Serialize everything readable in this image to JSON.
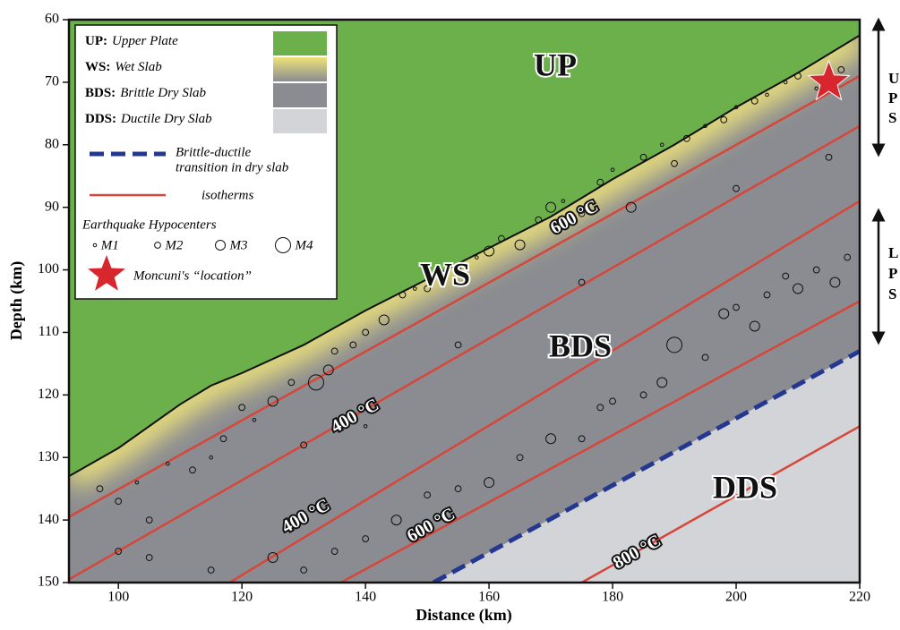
{
  "chart_data": {
    "type": "cross-section",
    "x_label": "Distance (km)",
    "y_label": "Depth (km)",
    "xlim": [
      92,
      220
    ],
    "ylim": [
      60,
      150
    ],
    "xticks": [
      100,
      120,
      140,
      160,
      180,
      200,
      220
    ],
    "yticks": [
      60,
      70,
      80,
      90,
      100,
      110,
      120,
      130,
      140,
      150
    ],
    "y_inverted": true,
    "colors": {
      "UP": "#6bb04a",
      "WS": "#ede27a",
      "BDS": "#8b8c91",
      "DDS": "#d3d4d7",
      "isotherm": "#d7463a",
      "transition": "#24388f",
      "star": "#d7262e"
    },
    "slab_top": {
      "x": [
        92,
        100,
        110,
        115,
        120,
        130,
        140,
        150,
        160,
        170,
        180,
        190,
        200,
        210,
        220
      ],
      "y": [
        133,
        128.5,
        121.5,
        118.5,
        116.5,
        112,
        106.5,
        101.5,
        96.5,
        91.5,
        85.5,
        80,
        74,
        68.5,
        62.5
      ]
    },
    "isotherms": [
      {
        "x": [
          92,
          220
        ],
        "y": [
          139.5,
          69
        ]
      },
      {
        "x": [
          92,
          220
        ],
        "y": [
          149.5,
          77
        ]
      },
      {
        "x": [
          118,
          220
        ],
        "y": [
          150,
          89
        ]
      },
      {
        "x": [
          136,
          220
        ],
        "y": [
          150,
          105
        ]
      },
      {
        "x": [
          175,
          220
        ],
        "y": [
          150,
          125
        ]
      }
    ],
    "transition": {
      "x": [
        151,
        220
      ],
      "y": [
        150,
        113
      ]
    },
    "star": {
      "x": 215,
      "y": 70
    },
    "hypocenters": {
      "x": [
        97,
        100,
        103,
        105,
        108,
        112,
        115,
        117,
        120,
        122,
        125,
        128,
        132,
        134,
        135,
        138,
        140,
        143,
        146,
        148,
        150,
        152,
        155,
        158,
        160,
        162,
        165,
        168,
        170,
        172,
        175,
        178,
        180,
        183,
        185,
        188,
        190,
        192,
        195,
        198,
        200,
        203,
        205,
        208,
        210,
        213,
        217,
        130,
        140,
        155,
        175,
        200,
        215,
        100,
        105,
        115,
        125,
        130,
        135,
        140,
        145,
        150,
        155,
        160,
        165,
        170,
        175,
        178,
        180,
        185,
        188,
        190,
        195,
        198,
        200,
        203,
        205,
        208,
        210,
        213,
        216,
        218
      ],
      "y": [
        135,
        137,
        134,
        140,
        131,
        132,
        130,
        127,
        122,
        124,
        121,
        118,
        118,
        116,
        113,
        112,
        110,
        108,
        104,
        103,
        103,
        101,
        100,
        98,
        97,
        95,
        96,
        92,
        90,
        89,
        91,
        86,
        84,
        90,
        82,
        80,
        83,
        79,
        77,
        76,
        74,
        73,
        72,
        70,
        69,
        71,
        68,
        128,
        125,
        112,
        102,
        87,
        82,
        145,
        146,
        148,
        146,
        148,
        145,
        143,
        140,
        136,
        135,
        134,
        130,
        127,
        127,
        122,
        121,
        120,
        118,
        112,
        114,
        107,
        106,
        109,
        104,
        101,
        103,
        100,
        102,
        98
      ],
      "m": [
        2,
        2,
        1,
        2,
        1,
        2,
        1,
        2,
        2,
        1,
        3,
        2,
        4,
        3,
        2,
        2,
        2,
        3,
        2,
        1,
        2,
        1,
        2,
        1,
        3,
        2,
        3,
        2,
        3,
        1,
        2,
        2,
        1,
        3,
        2,
        1,
        2,
        2,
        1,
        2,
        1,
        2,
        1,
        1,
        2,
        1,
        2,
        2,
        1,
        2,
        2,
        2,
        2,
        2,
        2,
        2,
        3,
        2,
        2,
        2,
        3,
        2,
        2,
        3,
        2,
        3,
        2,
        2,
        2,
        2,
        3,
        4,
        2,
        3,
        2,
        3,
        2,
        2,
        3,
        2,
        3,
        2
      ]
    },
    "region_labels": [
      "UP",
      "WS",
      "BDS",
      "DDS"
    ],
    "isotherm_labels": [
      "600 °C",
      "400 °C",
      "400 °C",
      "600 °C",
      "800 °C"
    ],
    "legend": {
      "regions": [
        {
          "key": "UP:",
          "desc": "Upper Plate"
        },
        {
          "key": "WS:",
          "desc": "Wet Slab"
        },
        {
          "key": "BDS:",
          "desc": "Brittle Dry Slab"
        },
        {
          "key": "DDS:",
          "desc": "Ductile Dry Slab"
        }
      ],
      "transition": [
        "Brittle-ductile",
        "transition in dry slab"
      ],
      "isotherms": "isotherms",
      "hypocenters": "Earthquake Hypocenters",
      "magnitudes": [
        "M1",
        "M2",
        "M3",
        "M4"
      ],
      "star": "Moncuni's “location”"
    },
    "side_upper": [
      "U",
      "P",
      "S"
    ],
    "side_lower": [
      "L",
      "P",
      "S"
    ]
  }
}
